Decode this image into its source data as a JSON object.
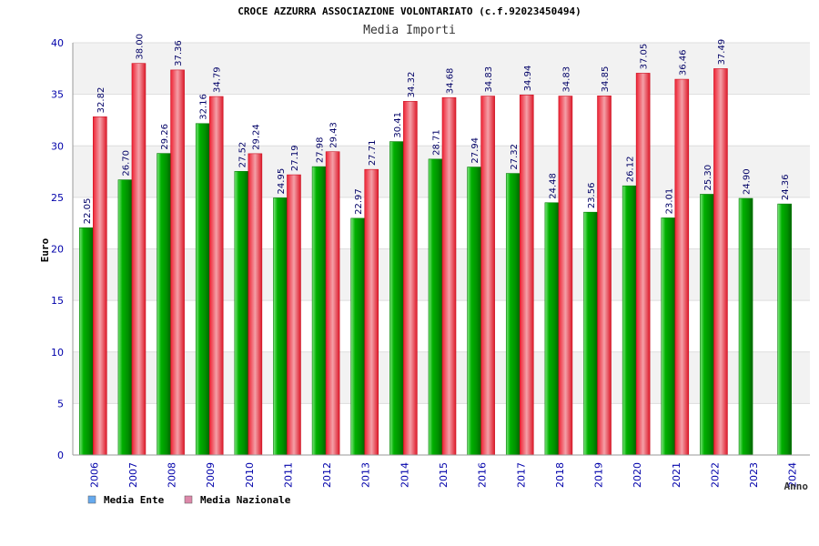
{
  "chart_data": {
    "type": "bar",
    "title": "CROCE AZZURRA ASSOCIAZIONE VOLONTARIATO (c.f.92023450494)",
    "subtitle": "Media Importi",
    "ylabel": "Euro",
    "xlabel": "Anno",
    "ylim": [
      0,
      40
    ],
    "yticks": [
      "0",
      "5",
      "10",
      "15",
      "20",
      "25",
      "30",
      "35",
      "40"
    ],
    "grid": "horizontal alternating bands",
    "legend_position": "bottom-left",
    "categories": [
      "2006",
      "2007",
      "2008",
      "2009",
      "2010",
      "2011",
      "2012",
      "2013",
      "2014",
      "2015",
      "2016",
      "2017",
      "2018",
      "2019",
      "2020",
      "2021",
      "2022",
      "2023",
      "2024"
    ],
    "series": [
      {
        "name": "Media Ente",
        "bar_color": "#00aa00",
        "legend_color": "#66aaee",
        "values": [
          22.05,
          26.7,
          29.26,
          32.16,
          27.52,
          24.95,
          27.98,
          22.97,
          30.41,
          28.71,
          27.94,
          27.32,
          24.48,
          23.56,
          26.12,
          23.01,
          25.3,
          24.9,
          24.36
        ],
        "labels": [
          "22.05",
          "26.70",
          "29.26",
          "32.16",
          "27.52",
          "24.95",
          "27.98",
          "22.97",
          "30.41",
          "28.71",
          "27.94",
          "27.32",
          "24.48",
          "23.56",
          "26.12",
          "23.01",
          "25.30",
          "24.90",
          "24.36"
        ]
      },
      {
        "name": "Media Nazionale",
        "bar_color": "#dd2233",
        "legend_color": "#dd88aa",
        "values": [
          32.82,
          38.0,
          37.36,
          34.79,
          29.24,
          27.19,
          29.43,
          27.71,
          34.32,
          34.68,
          34.83,
          34.94,
          34.83,
          34.85,
          37.05,
          36.46,
          37.49,
          null,
          null
        ],
        "labels": [
          "32.82",
          "38.00",
          "37.36",
          "34.79",
          "29.24",
          "27.19",
          "29.43",
          "27.71",
          "34.32",
          "34.68",
          "34.83",
          "34.94",
          "34.83",
          "34.85",
          "37.05",
          "36.46",
          "37.49",
          null,
          null
        ]
      }
    ]
  }
}
